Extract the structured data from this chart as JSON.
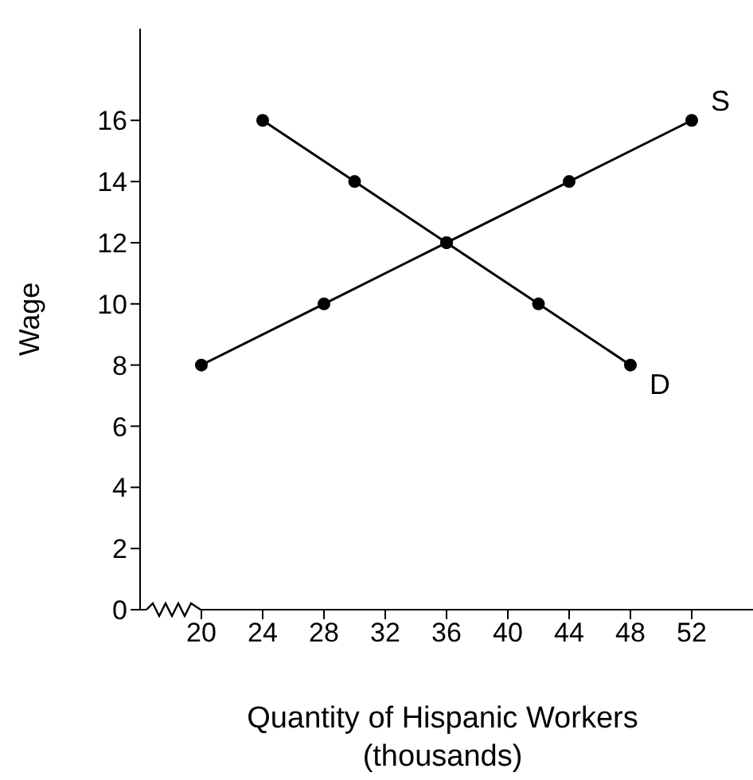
{
  "chart_data": {
    "type": "line",
    "xlabel": "Quantity of Hispanic Workers (thousands)",
    "ylabel": "Wage",
    "xlim": [
      16,
      56
    ],
    "xticks": [
      20,
      24,
      28,
      32,
      36,
      40,
      44,
      48,
      52
    ],
    "ylim": [
      0,
      19
    ],
    "yticks": [
      0,
      2,
      4,
      6,
      8,
      10,
      12,
      14,
      16
    ],
    "series": [
      {
        "name": "S",
        "color": "#000000",
        "x": [
          20,
          28,
          36,
          44,
          52
        ],
        "values": [
          8,
          10,
          12,
          14,
          16
        ]
      },
      {
        "name": "D",
        "color": "#000000",
        "x": [
          24,
          30,
          36,
          42,
          48
        ],
        "values": [
          16,
          14,
          12,
          10,
          8
        ]
      }
    ],
    "marker": "circle",
    "line_style": "solid"
  }
}
